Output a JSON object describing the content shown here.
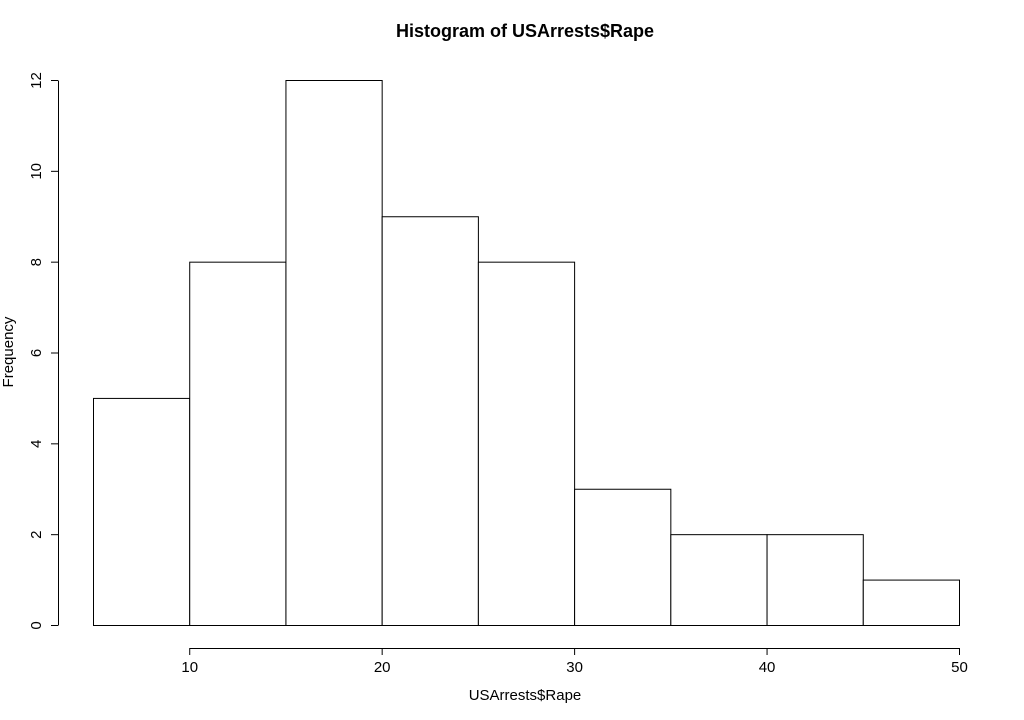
{
  "chart_data": {
    "type": "bar",
    "title": "Histogram of USArrests$Rape",
    "xlabel": "USArrests$Rape",
    "ylabel": "Frequency",
    "bins": [
      {
        "start": 5,
        "end": 10,
        "count": 5
      },
      {
        "start": 10,
        "end": 15,
        "count": 8
      },
      {
        "start": 15,
        "end": 20,
        "count": 12
      },
      {
        "start": 20,
        "end": 25,
        "count": 9
      },
      {
        "start": 25,
        "end": 30,
        "count": 8
      },
      {
        "start": 30,
        "end": 35,
        "count": 3
      },
      {
        "start": 35,
        "end": 40,
        "count": 2
      },
      {
        "start": 40,
        "end": 45,
        "count": 2
      },
      {
        "start": 45,
        "end": 50,
        "count": 1
      }
    ],
    "xlim": [
      5,
      50
    ],
    "ylim": [
      0,
      12
    ],
    "x_ticks": [
      10,
      20,
      30,
      40,
      50
    ],
    "y_ticks": [
      0,
      2,
      4,
      6,
      8,
      10,
      12
    ],
    "grid": false,
    "bar_fill": "#ffffff",
    "bar_stroke": "#000000"
  }
}
